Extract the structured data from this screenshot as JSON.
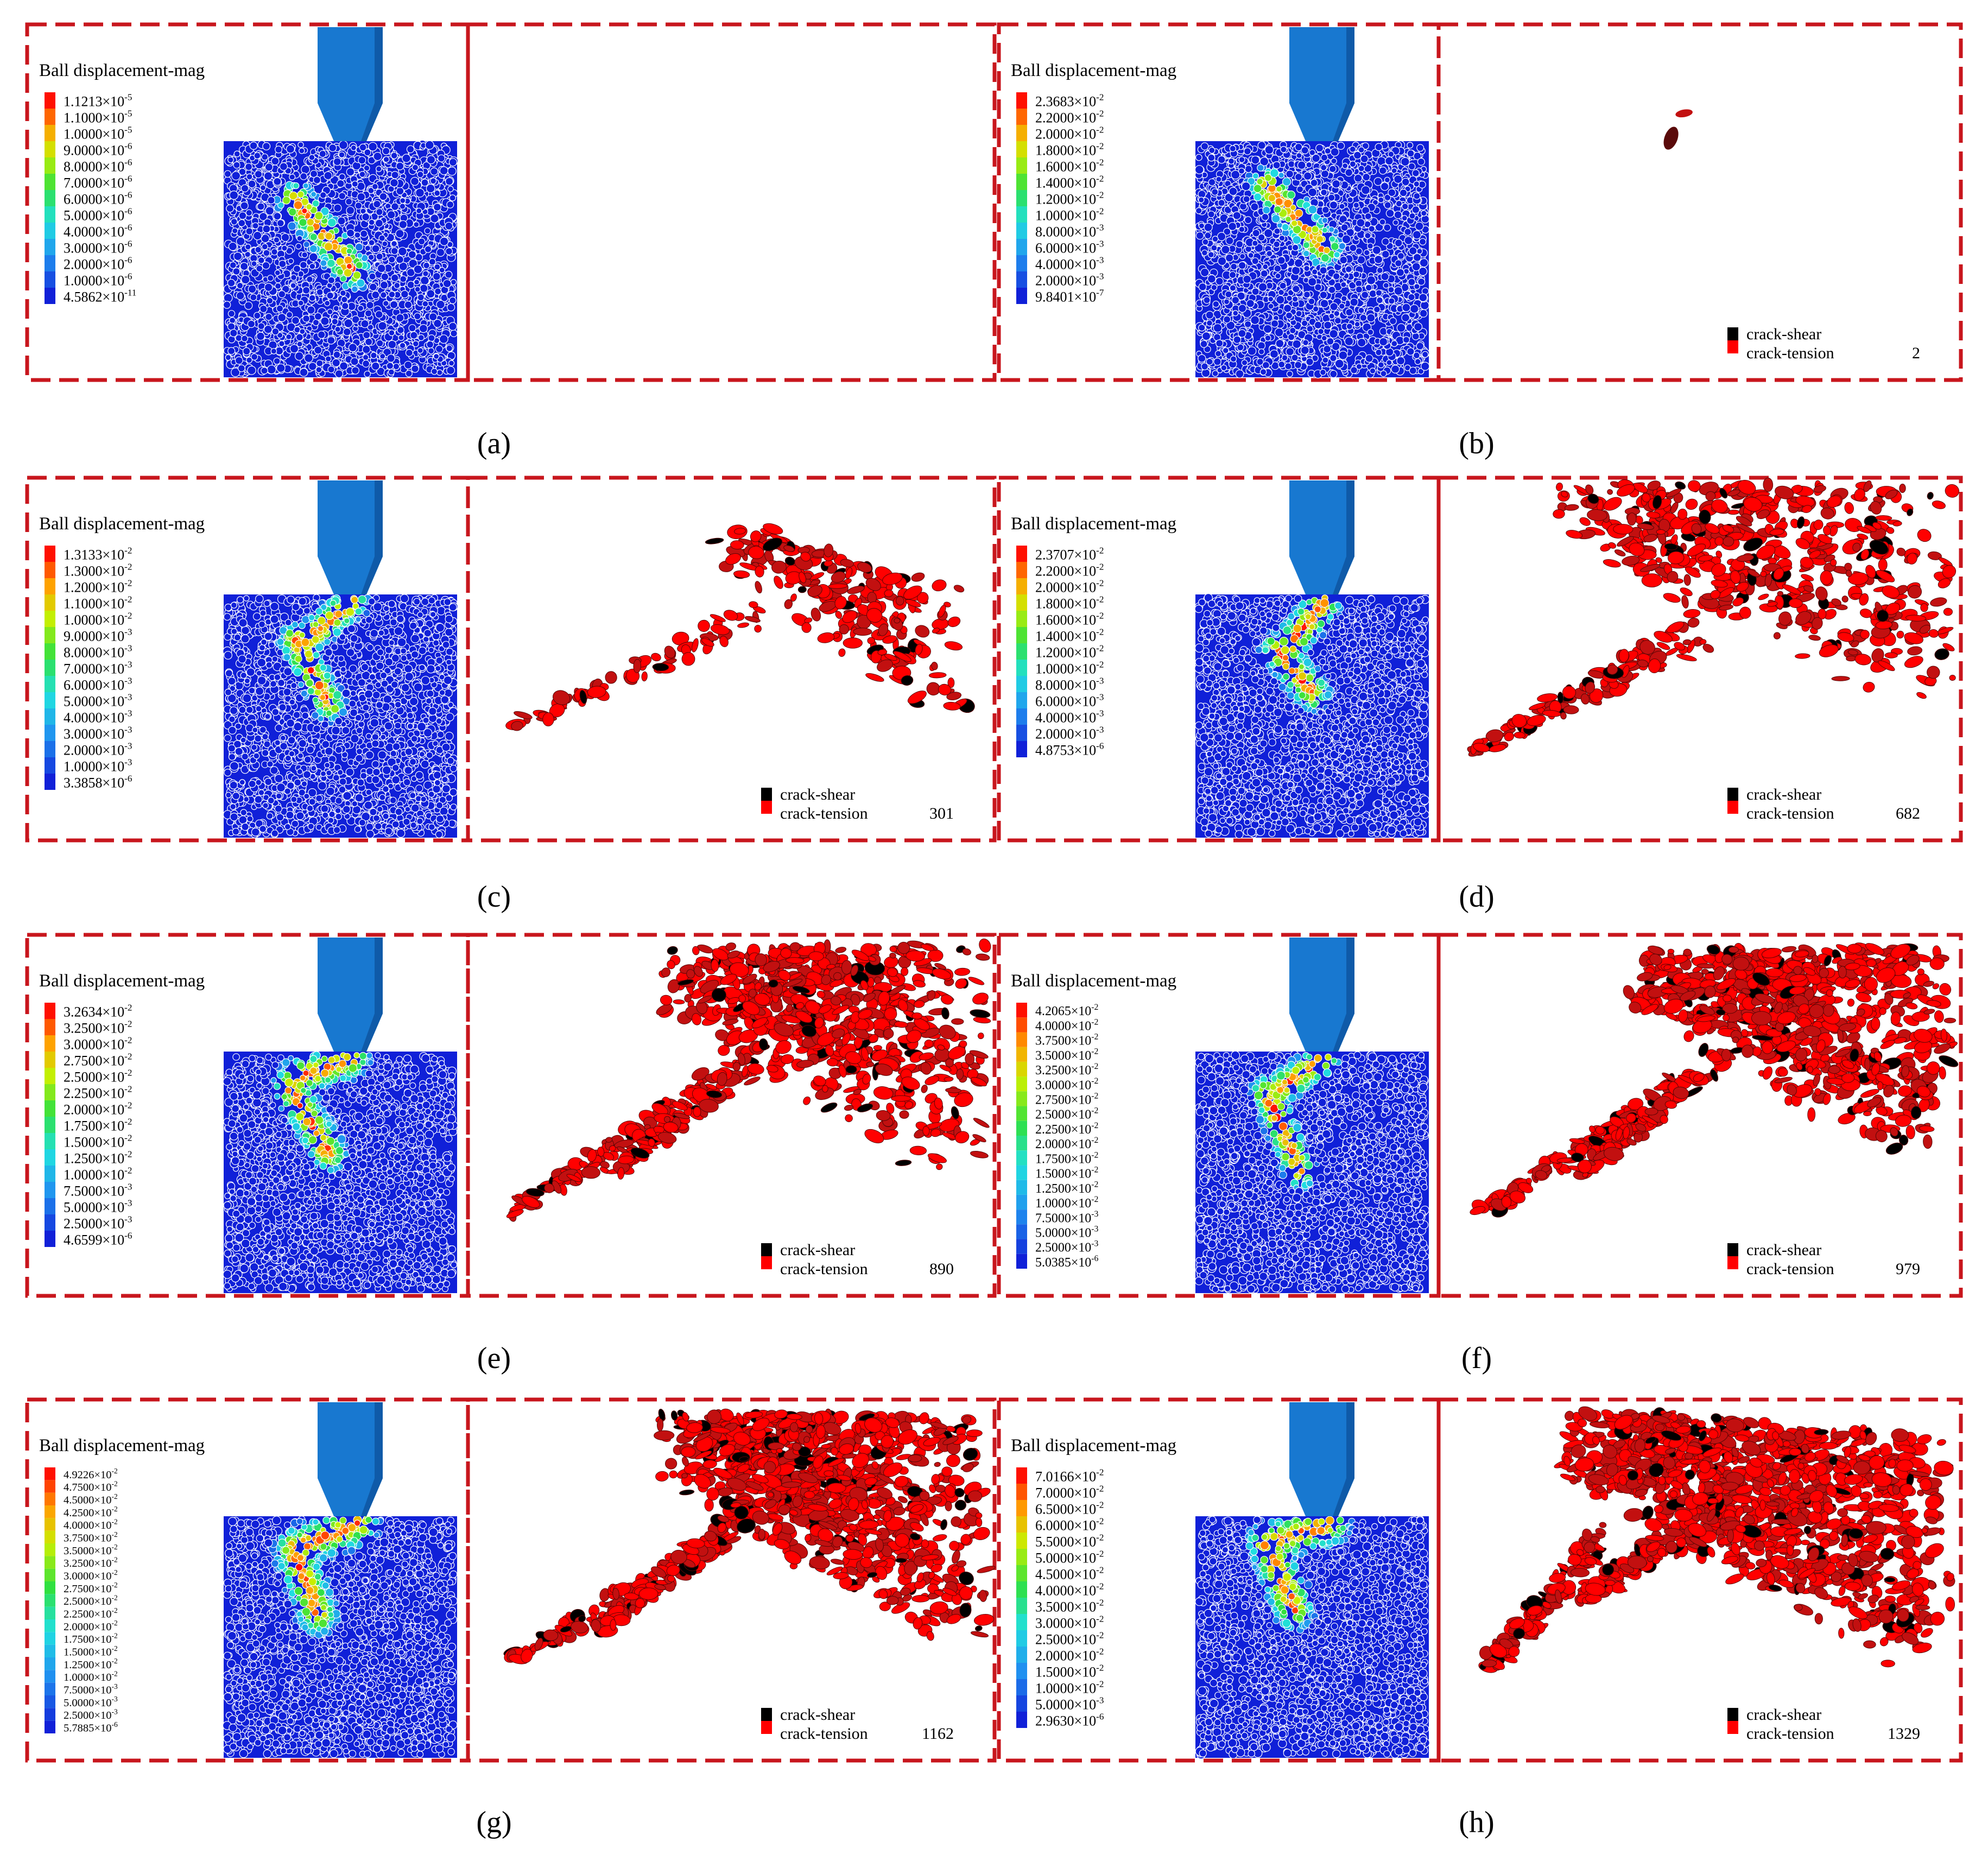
{
  "colors": {
    "frame": "#c8161d",
    "background": "#ffffff",
    "indenter": "#1878d0",
    "indenter_side": "#0f5aa8",
    "particle": "#1020d8",
    "crack_shear": "#000000",
    "crack_tension": "#ff0000",
    "crack_body": "#c21010",
    "legend_scale": [
      "#ff0000",
      "#ff4a00",
      "#ff8c00",
      "#ffcf00",
      "#d8f000",
      "#88f000",
      "#38e038",
      "#20e0a0",
      "#20d0e0",
      "#209ef0",
      "#2060f0",
      "#1030e8"
    ]
  },
  "figure": {
    "legend_title": "Ball displacement-mag",
    "crack_shear_label": "crack-shear",
    "crack_tension_label": "crack-tension",
    "panels": [
      {
        "id": "a",
        "caption": "(a)",
        "crack_count": "",
        "legend": [
          {
            "m": "1.1213",
            "e": "-5"
          },
          {
            "m": "1.1000",
            "e": "-5"
          },
          {
            "m": "1.0000",
            "e": "-5"
          },
          {
            "m": "9.0000",
            "e": "-6"
          },
          {
            "m": "8.0000",
            "e": "-6"
          },
          {
            "m": "7.0000",
            "e": "-6"
          },
          {
            "m": "6.0000",
            "e": "-6"
          },
          {
            "m": "5.0000",
            "e": "-6"
          },
          {
            "m": "4.0000",
            "e": "-6"
          },
          {
            "m": "3.0000",
            "e": "-6"
          },
          {
            "m": "2.0000",
            "e": "-6"
          },
          {
            "m": "1.0000",
            "e": "-6"
          },
          {
            "m": "4.5862",
            "e": "-11"
          }
        ]
      },
      {
        "id": "b",
        "caption": "(b)",
        "crack_count": "2",
        "legend": [
          {
            "m": "2.3683",
            "e": "-2"
          },
          {
            "m": "2.2000",
            "e": "-2"
          },
          {
            "m": "2.0000",
            "e": "-2"
          },
          {
            "m": "1.8000",
            "e": "-2"
          },
          {
            "m": "1.6000",
            "e": "-2"
          },
          {
            "m": "1.4000",
            "e": "-2"
          },
          {
            "m": "1.2000",
            "e": "-2"
          },
          {
            "m": "1.0000",
            "e": "-2"
          },
          {
            "m": "8.0000",
            "e": "-3"
          },
          {
            "m": "6.0000",
            "e": "-3"
          },
          {
            "m": "4.0000",
            "e": "-3"
          },
          {
            "m": "2.0000",
            "e": "-3"
          },
          {
            "m": "9.8401",
            "e": "-7"
          }
        ]
      },
      {
        "id": "c",
        "caption": "(c)",
        "crack_count": "301",
        "legend": [
          {
            "m": "1.3133",
            "e": "-2"
          },
          {
            "m": "1.3000",
            "e": "-2"
          },
          {
            "m": "1.2000",
            "e": "-2"
          },
          {
            "m": "1.1000",
            "e": "-2"
          },
          {
            "m": "1.0000",
            "e": "-2"
          },
          {
            "m": "9.0000",
            "e": "-3"
          },
          {
            "m": "8.0000",
            "e": "-3"
          },
          {
            "m": "7.0000",
            "e": "-3"
          },
          {
            "m": "6.0000",
            "e": "-3"
          },
          {
            "m": "5.0000",
            "e": "-3"
          },
          {
            "m": "4.0000",
            "e": "-3"
          },
          {
            "m": "3.0000",
            "e": "-3"
          },
          {
            "m": "2.0000",
            "e": "-3"
          },
          {
            "m": "1.0000",
            "e": "-3"
          },
          {
            "m": "3.3858",
            "e": "-6"
          }
        ]
      },
      {
        "id": "d",
        "caption": "(d)",
        "crack_count": "682",
        "legend": [
          {
            "m": "2.3707",
            "e": "-2"
          },
          {
            "m": "2.2000",
            "e": "-2"
          },
          {
            "m": "2.0000",
            "e": "-2"
          },
          {
            "m": "1.8000",
            "e": "-2"
          },
          {
            "m": "1.6000",
            "e": "-2"
          },
          {
            "m": "1.4000",
            "e": "-2"
          },
          {
            "m": "1.2000",
            "e": "-2"
          },
          {
            "m": "1.0000",
            "e": "-2"
          },
          {
            "m": "8.0000",
            "e": "-3"
          },
          {
            "m": "6.0000",
            "e": "-3"
          },
          {
            "m": "4.0000",
            "e": "-3"
          },
          {
            "m": "2.0000",
            "e": "-3"
          },
          {
            "m": "4.8753",
            "e": "-6"
          }
        ]
      },
      {
        "id": "e",
        "caption": "(e)",
        "crack_count": "890",
        "legend": [
          {
            "m": "3.2634",
            "e": "-2"
          },
          {
            "m": "3.2500",
            "e": "-2"
          },
          {
            "m": "3.0000",
            "e": "-2"
          },
          {
            "m": "2.7500",
            "e": "-2"
          },
          {
            "m": "2.5000",
            "e": "-2"
          },
          {
            "m": "2.2500",
            "e": "-2"
          },
          {
            "m": "2.0000",
            "e": "-2"
          },
          {
            "m": "1.7500",
            "e": "-2"
          },
          {
            "m": "1.5000",
            "e": "-2"
          },
          {
            "m": "1.2500",
            "e": "-2"
          },
          {
            "m": "1.0000",
            "e": "-2"
          },
          {
            "m": "7.5000",
            "e": "-3"
          },
          {
            "m": "5.0000",
            "e": "-3"
          },
          {
            "m": "2.5000",
            "e": "-3"
          },
          {
            "m": "4.6599",
            "e": "-6"
          }
        ]
      },
      {
        "id": "f",
        "caption": "(f)",
        "crack_count": "979",
        "legend": [
          {
            "m": "4.2065",
            "e": "-2"
          },
          {
            "m": "4.0000",
            "e": "-2"
          },
          {
            "m": "3.7500",
            "e": "-2"
          },
          {
            "m": "3.5000",
            "e": "-2"
          },
          {
            "m": "3.2500",
            "e": "-2"
          },
          {
            "m": "3.0000",
            "e": "-2"
          },
          {
            "m": "2.7500",
            "e": "-2"
          },
          {
            "m": "2.5000",
            "e": "-2"
          },
          {
            "m": "2.2500",
            "e": "-2"
          },
          {
            "m": "2.0000",
            "e": "-2"
          },
          {
            "m": "1.7500",
            "e": "-2"
          },
          {
            "m": "1.5000",
            "e": "-2"
          },
          {
            "m": "1.2500",
            "e": "-2"
          },
          {
            "m": "1.0000",
            "e": "-2"
          },
          {
            "m": "7.5000",
            "e": "-3"
          },
          {
            "m": "5.0000",
            "e": "-3"
          },
          {
            "m": "2.5000",
            "e": "-3"
          },
          {
            "m": "5.0385",
            "e": "-6"
          }
        ]
      },
      {
        "id": "g",
        "caption": "(g)",
        "crack_count": "1162",
        "legend": [
          {
            "m": "4.9226",
            "e": "-2"
          },
          {
            "m": "4.7500",
            "e": "-2"
          },
          {
            "m": "4.5000",
            "e": "-2"
          },
          {
            "m": "4.2500",
            "e": "-2"
          },
          {
            "m": "4.0000",
            "e": "-2"
          },
          {
            "m": "3.7500",
            "e": "-2"
          },
          {
            "m": "3.5000",
            "e": "-2"
          },
          {
            "m": "3.2500",
            "e": "-2"
          },
          {
            "m": "3.0000",
            "e": "-2"
          },
          {
            "m": "2.7500",
            "e": "-2"
          },
          {
            "m": "2.5000",
            "e": "-2"
          },
          {
            "m": "2.2500",
            "e": "-2"
          },
          {
            "m": "2.0000",
            "e": "-2"
          },
          {
            "m": "1.7500",
            "e": "-2"
          },
          {
            "m": "1.5000",
            "e": "-2"
          },
          {
            "m": "1.2500",
            "e": "-2"
          },
          {
            "m": "1.0000",
            "e": "-2"
          },
          {
            "m": "7.5000",
            "e": "-3"
          },
          {
            "m": "5.0000",
            "e": "-3"
          },
          {
            "m": "2.5000",
            "e": "-3"
          },
          {
            "m": "5.7885",
            "e": "-6"
          }
        ]
      },
      {
        "id": "h",
        "caption": "(h)",
        "crack_count": "1329",
        "legend": [
          {
            "m": "7.0166",
            "e": "-2"
          },
          {
            "m": "7.0000",
            "e": "-2"
          },
          {
            "m": "6.5000",
            "e": "-2"
          },
          {
            "m": "6.0000",
            "e": "-2"
          },
          {
            "m": "5.5000",
            "e": "-2"
          },
          {
            "m": "5.0000",
            "e": "-2"
          },
          {
            "m": "4.5000",
            "e": "-2"
          },
          {
            "m": "4.0000",
            "e": "-2"
          },
          {
            "m": "3.5000",
            "e": "-2"
          },
          {
            "m": "3.0000",
            "e": "-2"
          },
          {
            "m": "2.5000",
            "e": "-2"
          },
          {
            "m": "2.0000",
            "e": "-2"
          },
          {
            "m": "1.5000",
            "e": "-2"
          },
          {
            "m": "1.0000",
            "e": "-2"
          },
          {
            "m": "5.0000",
            "e": "-3"
          },
          {
            "m": "2.9630",
            "e": "-6"
          }
        ]
      }
    ]
  }
}
